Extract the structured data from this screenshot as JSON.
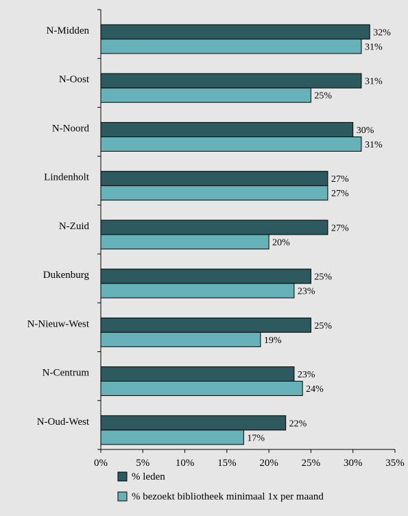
{
  "chart_data": {
    "type": "bar",
    "orientation": "horizontal",
    "categories": [
      "N-Midden",
      "N-Oost",
      "N-Noord",
      "Lindenholt",
      "N-Zuid",
      "Dukenburg",
      "N-Nieuw-West",
      "N-Centrum",
      "N-Oud-West"
    ],
    "series": [
      {
        "name": "% leden",
        "color": "#2d5a5e",
        "values": [
          32,
          31,
          30,
          27,
          27,
          25,
          25,
          23,
          22
        ],
        "labels": [
          "32%",
          "31%",
          "30%",
          "27%",
          "27%",
          "25%",
          "25%",
          "23%",
          "22%"
        ]
      },
      {
        "name": "% bezoekt bibliotheek minimaal 1x per maand",
        "color": "#66b2b8",
        "values": [
          31,
          25,
          31,
          27,
          20,
          23,
          19,
          24,
          17
        ],
        "labels": [
          "31%",
          "25%",
          "31%",
          "27%",
          "20%",
          "23%",
          "19%",
          "24%",
          "17%"
        ]
      }
    ],
    "xlim": [
      0,
      35
    ],
    "xticks": [
      0,
      5,
      10,
      15,
      20,
      25,
      30,
      35
    ],
    "xtick_labels": [
      "0%",
      "5%",
      "10%",
      "15%",
      "20%",
      "25%",
      "30%",
      "35%"
    ],
    "title": "",
    "xlabel": "",
    "ylabel": "",
    "grid": false,
    "legend_position": "bottom",
    "background": "#e6e6e6"
  }
}
